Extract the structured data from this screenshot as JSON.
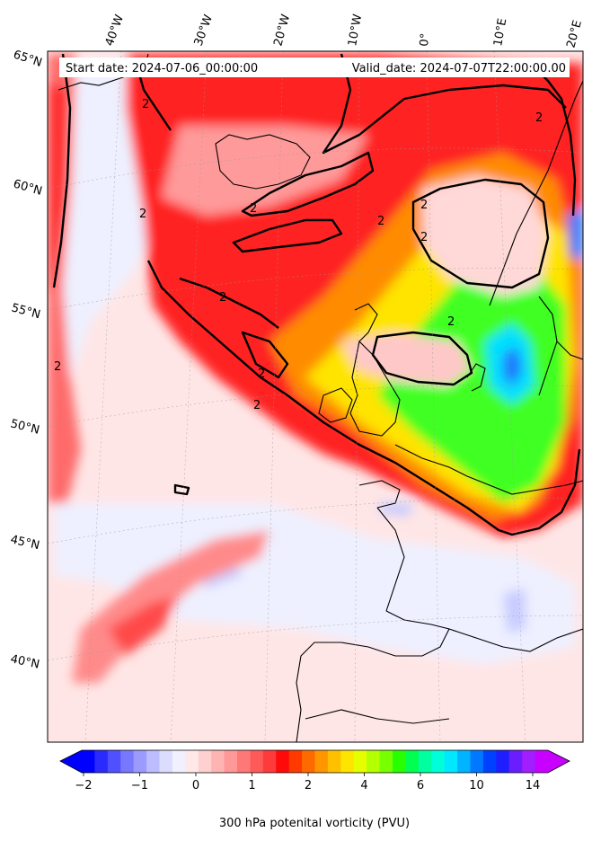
{
  "header": {
    "start_date": "Start date: 2024-07-06_00:00:00",
    "valid_date": "Valid_date: 2024-07-07T22:00:00.00"
  },
  "longitude_labels": [
    "40°W",
    "30°W",
    "20°W",
    "10°W",
    "0°",
    "10°E",
    "20°E"
  ],
  "latitude_labels": [
    "65°N",
    "60°N",
    "55°N",
    "50°N",
    "45°N",
    "40°N"
  ],
  "contour_label": "2",
  "colorbar": {
    "label": "300 hPa potenital vorticity (PVU)",
    "ticks": [
      "−2",
      "−1",
      "0",
      "1",
      "2",
      "4",
      "6",
      "10",
      "14"
    ],
    "colors": [
      "#0000ff",
      "#2a2aff",
      "#5050ff",
      "#7878ff",
      "#9a9aff",
      "#bcbcff",
      "#dcdcff",
      "#f0f0ff",
      "#ffe8e8",
      "#ffd0d0",
      "#ffb4b4",
      "#ff9898",
      "#ff7878",
      "#ff5a5a",
      "#ff3a3a",
      "#ff0a0a",
      "#ff3a00",
      "#ff6a00",
      "#ff9600",
      "#ffc000",
      "#ffe400",
      "#e6ff00",
      "#b4ff00",
      "#78ff00",
      "#28ff00",
      "#00ff50",
      "#00ffa0",
      "#00ffd8",
      "#00e8ff",
      "#00b4ff",
      "#0078ff",
      "#0040ff",
      "#1e1eff",
      "#6a1eff",
      "#a01eff",
      "#c800ff"
    ],
    "under_color": "#0000ff",
    "over_color": "#c800ff"
  }
}
